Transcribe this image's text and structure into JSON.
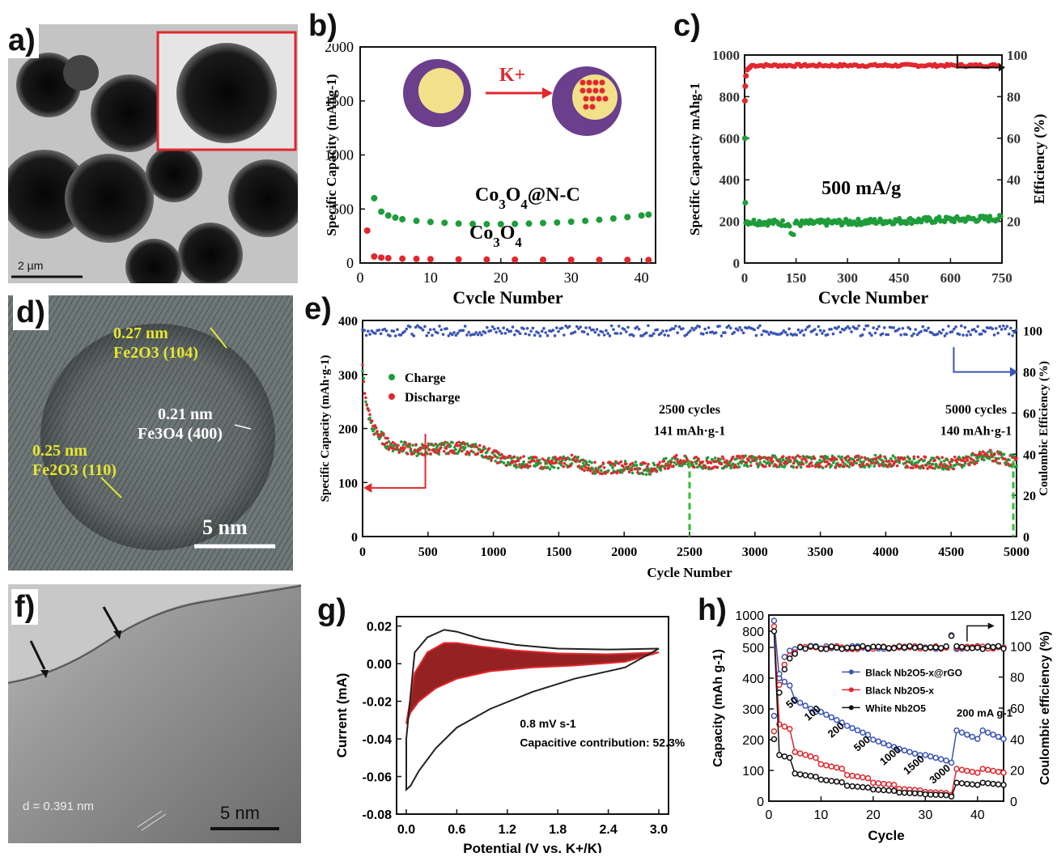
{
  "labels": {
    "a": "a)",
    "b": "b)",
    "c": "c)",
    "d": "d)",
    "e": "e)",
    "f": "f)",
    "g": "g)",
    "h": "h)"
  },
  "panel_a": {
    "scale_bar": "2 µm"
  },
  "panel_d": {
    "annotations": [
      {
        "spacing": "0.27 nm",
        "phase": "Fe2O3 (104)"
      },
      {
        "spacing": "0.21 nm",
        "phase": "Fe3O4 (400)"
      },
      {
        "spacing": "0.25 nm",
        "phase": "Fe2O3 (110)"
      }
    ],
    "scale_bar": "5 nm"
  },
  "panel_f": {
    "d_spacing": "d = 0.391 nm",
    "scale_bar": "5 nm"
  },
  "colors": {
    "red": "#e0282e",
    "green": "#1f9c3a",
    "blue": "#3a54b4",
    "darkred": "#8a0a0a",
    "black": "#111111",
    "yellow": "#d8d84a",
    "purple": "#6b3f8c"
  },
  "chart_data": [
    {
      "id": "b",
      "type": "scatter",
      "xlabel": "Cycle Number",
      "ylabel": "Specific Capacity (mAhg-1)",
      "xlim": [
        0,
        42
      ],
      "ylim": [
        0,
        2000
      ],
      "xticks": [
        0,
        10,
        20,
        30,
        40
      ],
      "yticks": [
        0,
        500,
        1000,
        1500,
        2000
      ],
      "arrow_label": "K+",
      "series": [
        {
          "name": "Co3O4@N-C",
          "color": "green",
          "points": [
            [
              2,
              600
            ],
            [
              3,
              475
            ],
            [
              4,
              440
            ],
            [
              5,
              420
            ],
            [
              6,
              405
            ],
            [
              8,
              390
            ],
            [
              10,
              380
            ],
            [
              12,
              372
            ],
            [
              14,
              365
            ],
            [
              16,
              362
            ],
            [
              18,
              360
            ],
            [
              20,
              360
            ],
            [
              22,
              362
            ],
            [
              24,
              365
            ],
            [
              26,
              370
            ],
            [
              28,
              375
            ],
            [
              30,
              382
            ],
            [
              32,
              390
            ],
            [
              34,
              400
            ],
            [
              36,
              412
            ],
            [
              38,
              425
            ],
            [
              40,
              440
            ],
            [
              41,
              448
            ]
          ]
        },
        {
          "name": "Co3O4",
          "color": "red",
          "points": [
            [
              1,
              300
            ],
            [
              2,
              60
            ],
            [
              3,
              50
            ],
            [
              4,
              45
            ],
            [
              6,
              40
            ],
            [
              8,
              38
            ],
            [
              10,
              36
            ],
            [
              14,
              34
            ],
            [
              18,
              32
            ],
            [
              22,
              31
            ],
            [
              26,
              30
            ],
            [
              30,
              30
            ],
            [
              34,
              29
            ],
            [
              38,
              29
            ],
            [
              41,
              28
            ]
          ]
        }
      ]
    },
    {
      "id": "c",
      "type": "scatter",
      "xlabel": "Cycle Number",
      "ylabel": "Specific Capacity  mAhg-1",
      "y2label": "Efficiency (%)",
      "xlim": [
        0,
        750
      ],
      "ylim": [
        0,
        1000
      ],
      "y2lim": [
        0,
        100
      ],
      "xticks": [
        0,
        150,
        300,
        450,
        600,
        750
      ],
      "yticks": [
        0,
        200,
        400,
        600,
        800,
        1000
      ],
      "y2ticks": [
        20,
        40,
        60,
        80,
        100
      ],
      "annotation": "500 mA/g",
      "capacity": {
        "color": "green",
        "first": [
          [
            1,
            600
          ],
          [
            2,
            290
          ]
        ],
        "start": 200,
        "dip_at": 140,
        "dip_value": 140,
        "mid": 190,
        "end": 215
      },
      "efficiency": {
        "color": "red",
        "first": [
          [
            1,
            78
          ],
          [
            2,
            85
          ],
          [
            4,
            90
          ],
          [
            8,
            93
          ],
          [
            15,
            94
          ]
        ],
        "plateau": 95
      }
    },
    {
      "id": "e",
      "type": "line",
      "xlabel": "Cycle Number",
      "ylabel": "Specific Capacity (mAh·g-1)",
      "y2label": "Coulombic Efficiency (%)",
      "xlim": [
        0,
        5000
      ],
      "ylim": [
        0,
        400
      ],
      "y2lim": [
        0,
        105
      ],
      "xticks": [
        0,
        500,
        1000,
        1500,
        2000,
        2500,
        3000,
        3500,
        4000,
        4500,
        5000
      ],
      "yticks": [
        0,
        100,
        200,
        300,
        400
      ],
      "y2ticks": [
        0,
        20,
        40,
        60,
        80,
        100
      ],
      "legend": [
        "Charge",
        "Discharge"
      ],
      "annotations": [
        {
          "cycle": 2500,
          "line1": "2500 cycles",
          "line2": "141 mAh·g-1"
        },
        {
          "cycle": 5000,
          "line1": "5000 cycles",
          "line2": "140 mAh·g-1"
        }
      ],
      "capacity_profile": [
        [
          0,
          310
        ],
        [
          30,
          240
        ],
        [
          80,
          200
        ],
        [
          200,
          170
        ],
        [
          400,
          160
        ],
        [
          700,
          165
        ],
        [
          900,
          160
        ],
        [
          1100,
          140
        ],
        [
          1400,
          135
        ],
        [
          1600,
          140
        ],
        [
          1800,
          125
        ],
        [
          2000,
          130
        ],
        [
          2200,
          125
        ],
        [
          2400,
          140
        ],
        [
          2600,
          135
        ],
        [
          3000,
          140
        ],
        [
          3500,
          138
        ],
        [
          4000,
          140
        ],
        [
          4500,
          135
        ],
        [
          4800,
          150
        ],
        [
          5000,
          138
        ]
      ],
      "efficiency_mean": 100
    },
    {
      "id": "g",
      "type": "line",
      "xlabel": "Potential (V vs. K+/K)",
      "ylabel": "Current (mA)",
      "xlim": [
        0,
        3
      ],
      "ylim": [
        -0.08,
        0.025
      ],
      "xticks": [
        "0.0",
        "0.6",
        "1.2",
        "1.8",
        "2.4",
        "3.0"
      ],
      "yticks": [
        "-0.08",
        "-0.06",
        "-0.04",
        "-0.02",
        "0.00",
        "0.02"
      ],
      "text1": "0.8 mV s-1",
      "text2": "Capacitive contribution: 52.3%",
      "outer_upper": [
        [
          0,
          -0.04
        ],
        [
          0.1,
          0.006
        ],
        [
          0.25,
          0.014
        ],
        [
          0.45,
          0.018
        ],
        [
          0.6,
          0.017
        ],
        [
          0.9,
          0.013
        ],
        [
          1.3,
          0.01
        ],
        [
          1.8,
          0.008
        ],
        [
          2.4,
          0.0075
        ],
        [
          3.0,
          0.008
        ]
      ],
      "outer_lower": [
        [
          3.0,
          0.008
        ],
        [
          2.6,
          -0.002
        ],
        [
          2.0,
          -0.008
        ],
        [
          1.5,
          -0.015
        ],
        [
          1.0,
          -0.024
        ],
        [
          0.6,
          -0.034
        ],
        [
          0.35,
          -0.045
        ],
        [
          0.15,
          -0.057
        ],
        [
          0.05,
          -0.065
        ],
        [
          0.0,
          -0.067
        ]
      ],
      "inner_upper": [
        [
          0,
          -0.032
        ],
        [
          0.1,
          -0.005
        ],
        [
          0.25,
          0.006
        ],
        [
          0.45,
          0.011
        ],
        [
          0.6,
          0.011
        ],
        [
          0.9,
          0.009
        ],
        [
          1.3,
          0.007
        ],
        [
          1.8,
          0.0055
        ],
        [
          2.4,
          0.005
        ],
        [
          3.0,
          0.006
        ]
      ],
      "inner_lower": [
        [
          3.0,
          0.006
        ],
        [
          2.6,
          0.001
        ],
        [
          2.0,
          -0.001
        ],
        [
          1.5,
          -0.002
        ],
        [
          1.0,
          -0.004
        ],
        [
          0.6,
          -0.008
        ],
        [
          0.35,
          -0.013
        ],
        [
          0.15,
          -0.02
        ],
        [
          0.05,
          -0.026
        ],
        [
          0.0,
          -0.032
        ]
      ]
    },
    {
      "id": "h",
      "type": "scatter",
      "xlabel": "Cycle",
      "ylabel": "Capacity (mAh g-1)",
      "y2label": "Coulombic efficiency (%)",
      "xlim": [
        0,
        45
      ],
      "ylim": [
        0,
        1000
      ],
      "y2lim": [
        0,
        120
      ],
      "xticks": [
        0,
        10,
        20,
        30,
        40
      ],
      "yticks": [
        "0",
        "100",
        "200",
        "300",
        "400",
        "500",
        "800",
        "1000"
      ],
      "y2ticks": [
        0,
        20,
        40,
        60,
        80,
        100,
        120
      ],
      "rate_labels": [
        "50",
        "100",
        "200",
        "500",
        "1000",
        "1500",
        "3000",
        "200 mA g-1"
      ],
      "series": [
        {
          "name": "Black Nb2O5-x@rGO",
          "color": "blue",
          "steps": [
            930,
            400,
            330,
            290,
            245,
            200,
            170,
            150,
            125,
            230
          ],
          "ce_start": [
            55,
            82,
            93,
            97,
            98
          ]
        },
        {
          "name": "Black Nb2O5-x",
          "color": "red",
          "steps": [
            860,
            250,
            160,
            120,
            85,
            60,
            40,
            30,
            20,
            105
          ],
          "ce_start": [
            45,
            75,
            88,
            94,
            96
          ]
        },
        {
          "name": "White Nb2O5",
          "color": "black",
          "steps": [
            800,
            150,
            90,
            70,
            50,
            38,
            28,
            22,
            15,
            60
          ],
          "ce_start": [
            40,
            70,
            85,
            92,
            95
          ]
        }
      ]
    }
  ]
}
